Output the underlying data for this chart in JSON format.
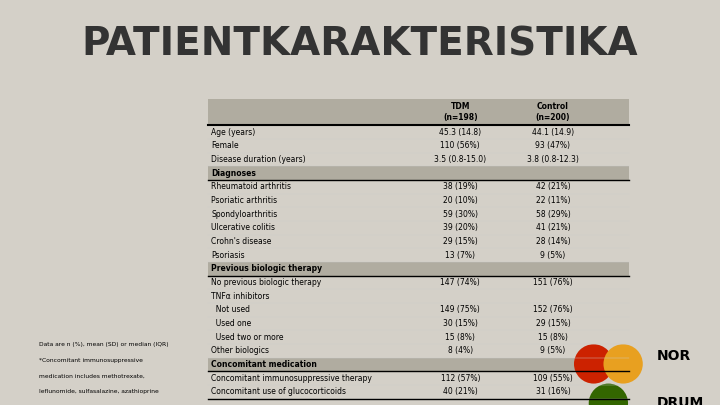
{
  "title": "PATIENTKARAKTERISTIKA",
  "title_color": "#333333",
  "bg_color": "#d4d0c8",
  "header_bg": "#b0aca0",
  "section_bg": "#b0aca0",
  "rows": [
    {
      "label": "Age (years)",
      "tdm": "45.3 (14.8)",
      "ctrl": "44.1 (14.9)",
      "type": "data"
    },
    {
      "label": "Female",
      "tdm": "110 (56%)",
      "ctrl": "93 (47%)",
      "type": "data"
    },
    {
      "label": "Disease duration (years)",
      "tdm": "3.5 (0.8-15.0)",
      "ctrl": "3.8 (0.8-12.3)",
      "type": "data"
    },
    {
      "label": "Diagnoses",
      "tdm": "",
      "ctrl": "",
      "type": "section"
    },
    {
      "label": "Rheumatoid arthritis",
      "tdm": "38 (19%)",
      "ctrl": "42 (21%)",
      "type": "data"
    },
    {
      "label": "Psoriatic arthritis",
      "tdm": "20 (10%)",
      "ctrl": "22 (11%)",
      "type": "data"
    },
    {
      "label": "Spondyloarthritis",
      "tdm": "59 (30%)",
      "ctrl": "58 (29%)",
      "type": "data"
    },
    {
      "label": "Ulcerative colitis",
      "tdm": "39 (20%)",
      "ctrl": "41 (21%)",
      "type": "data"
    },
    {
      "label": "Crohn's disease",
      "tdm": "29 (15%)",
      "ctrl": "28 (14%)",
      "type": "data"
    },
    {
      "label": "Psoriasis",
      "tdm": "13 (7%)",
      "ctrl": "9 (5%)",
      "type": "data"
    },
    {
      "label": "Previous biologic therapy",
      "tdm": "",
      "ctrl": "",
      "type": "section"
    },
    {
      "label": "No previous biologic therapy",
      "tdm": "147 (74%)",
      "ctrl": "151 (76%)",
      "type": "data"
    },
    {
      "label": "TNFα inhibitors",
      "tdm": "",
      "ctrl": "",
      "type": "subheader"
    },
    {
      "label": "  Not used",
      "tdm": "149 (75%)",
      "ctrl": "152 (76%)",
      "type": "data"
    },
    {
      "label": "  Used one",
      "tdm": "30 (15%)",
      "ctrl": "29 (15%)",
      "type": "data"
    },
    {
      "label": "  Used two or more",
      "tdm": "15 (8%)",
      "ctrl": "15 (8%)",
      "type": "data"
    },
    {
      "label": "Other biologics",
      "tdm": "8 (4%)",
      "ctrl": "9 (5%)",
      "type": "data"
    },
    {
      "label": "Concomitant medication",
      "tdm": "",
      "ctrl": "",
      "type": "section"
    },
    {
      "label": "Concomitant immunosuppressive therapy",
      "tdm": "112 (57%)",
      "ctrl": "109 (55%)",
      "type": "data"
    },
    {
      "label": "Concomitant use of glucocorticoids",
      "tdm": "40 (21%)",
      "ctrl": "31 (16%)",
      "type": "data"
    }
  ],
  "footnote1": "Data are n (%), mean (SD) or median (IQR)",
  "footnote2": "*Concomitant immunosuppressive",
  "footnote3": "medication includes methotrexate,",
  "footnote4": "leflunomide, sulfasalazine, azathioprine",
  "accent_color": "#e8a020",
  "logo_red": "#cc2200",
  "logo_yellow": "#e8a020",
  "logo_green": "#336600"
}
